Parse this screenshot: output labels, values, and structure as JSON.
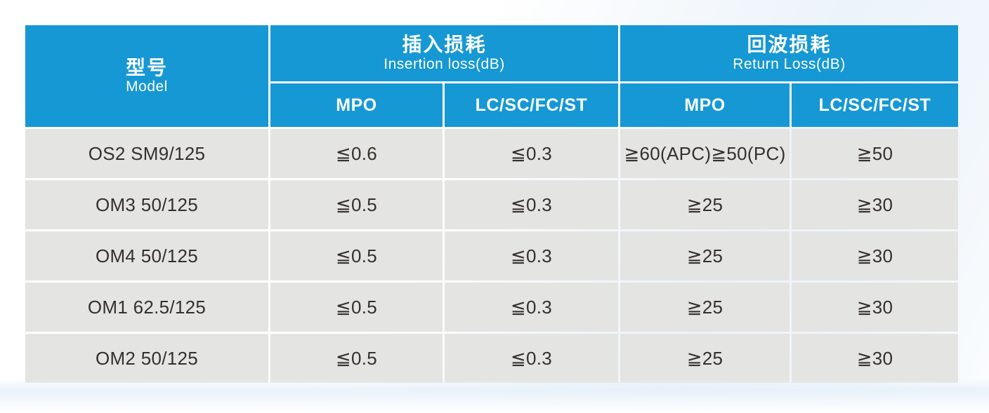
{
  "colors": {
    "header_blue": "#1598d4",
    "row_grey": "#e4e4e2",
    "header_text": "#ffffff",
    "cell_text": "#35302c",
    "page_tint": "#ecf3fa"
  },
  "table": {
    "header": {
      "model": {
        "zh": "型号",
        "en": "Model"
      },
      "groups": [
        {
          "zh": "插入损耗",
          "en": "Insertion loss(dB)",
          "subs": [
            "MPO",
            "LC/SC/FC/ST"
          ]
        },
        {
          "zh": "回波损耗",
          "en": "Return Loss(dB)",
          "subs": [
            "MPO",
            "LC/SC/FC/ST"
          ]
        }
      ]
    },
    "rows": [
      {
        "model": "OS2 SM9/125",
        "values": [
          "≦0.6",
          "≦0.3",
          "≧60(APC)≧50(PC)",
          "≧50"
        ]
      },
      {
        "model": "OM3 50/125",
        "values": [
          "≦0.5",
          "≦0.3",
          "≧25",
          "≧30"
        ]
      },
      {
        "model": "OM4 50/125",
        "values": [
          "≦0.5",
          "≦0.3",
          "≧25",
          "≧30"
        ]
      },
      {
        "model": "OM1 62.5/125",
        "values": [
          "≦0.5",
          "≦0.3",
          "≧25",
          "≧30"
        ]
      },
      {
        "model": "OM2 50/125",
        "values": [
          "≦0.5",
          "≦0.3",
          "≧25",
          "≧30"
        ]
      }
    ]
  }
}
